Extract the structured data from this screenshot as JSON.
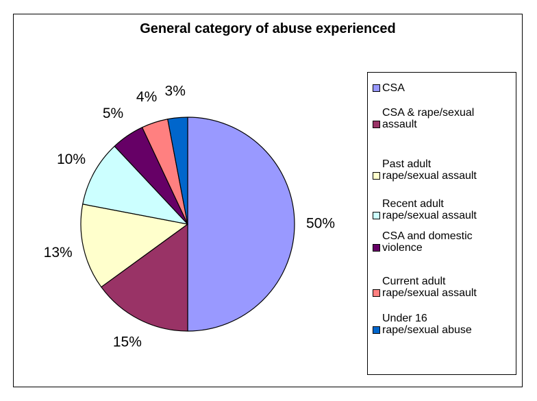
{
  "chart_data": {
    "type": "pie",
    "title": "General category of abuse experienced",
    "slices": [
      {
        "label": "CSA",
        "value": 50,
        "data_label": "50%",
        "color": "#9999ff"
      },
      {
        "label": "CSA & rape/sexual assault",
        "value": 15,
        "data_label": "15%",
        "color": "#993366"
      },
      {
        "label": "Past adult rape/sexual assault",
        "value": 13,
        "data_label": "13%",
        "color": "#ffffcc"
      },
      {
        "label": "Recent adult rape/sexual assault",
        "value": 10,
        "data_label": "10%",
        "color": "#ccffff"
      },
      {
        "label": "CSA and domestic violence",
        "value": 5,
        "data_label": "5%",
        "color": "#660066"
      },
      {
        "label": "Current adult rape/sexual assault",
        "value": 4,
        "data_label": "4%",
        "color": "#ff8080"
      },
      {
        "label": "Under 16 rape/sexual abuse",
        "value": 3,
        "data_label": "3%",
        "color": "#0066cc"
      }
    ],
    "legend_position": "right"
  },
  "legend": {
    "items": [
      {
        "text": "CSA"
      },
      {
        "text": "CSA & rape/sexual\nassault"
      },
      {
        "text": "Past adult\nrape/sexual assault"
      },
      {
        "text": "Recent adult\nrape/sexual assault"
      },
      {
        "text": "CSA and domestic\nviolence"
      },
      {
        "text": "Current adult\nrape/sexual assault"
      },
      {
        "text": "Under 16\nrape/sexual abuse"
      }
    ]
  }
}
